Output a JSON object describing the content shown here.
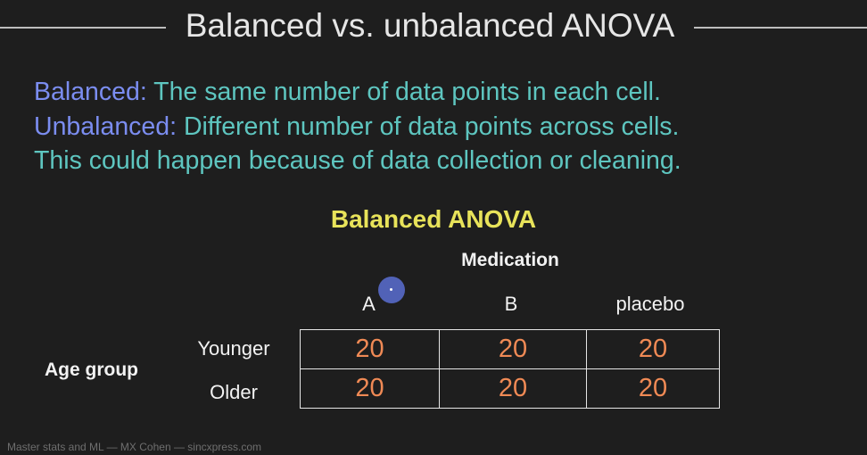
{
  "title": "Balanced vs. unbalanced ANOVA",
  "definitions": [
    {
      "term": "Balanced:",
      "text": " The same number of data points in each cell."
    },
    {
      "term": "Unbalanced:",
      "text": " Different number of data points across cells."
    },
    {
      "term": "",
      "text": "This could happen because of data collection or cleaning."
    }
  ],
  "table_title": "Balanced ANOVA",
  "column_factor": "Medication",
  "columns": [
    "A",
    "B",
    "placebo"
  ],
  "row_factor": "Age group",
  "rows": [
    {
      "label": "Younger",
      "values": [
        "20",
        "20",
        "20"
      ]
    },
    {
      "label": "Older",
      "values": [
        "20",
        "20",
        "20"
      ]
    }
  ],
  "footer": "Master stats and ML — MX Cohen — sincxpress.com",
  "colors": {
    "term": "#7b8df0",
    "text": "#5ec6c0",
    "table_title": "#e8e35a",
    "cell_value": "#f08a55"
  }
}
